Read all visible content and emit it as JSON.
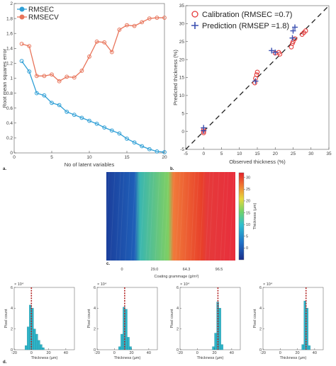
{
  "panels": {
    "a": "a.",
    "b": "b.",
    "c": "c.",
    "d": "d."
  },
  "colors": {
    "rmsec": "#2f9fd6",
    "rmsecv": "#e8745a",
    "calibration": "#e53c3c",
    "prediction": "#3a4fb0",
    "hist_bar": "#2fb5c9",
    "hist_line": "#b22222"
  },
  "chart_data": [
    {
      "id": "a",
      "type": "line",
      "xlabel": "No of latent variables",
      "ylabel": "Root mean squares error",
      "xlim": [
        0,
        20
      ],
      "ylim": [
        0,
        2
      ],
      "xticks": [
        0,
        5,
        10,
        15,
        20
      ],
      "yticks": [
        0,
        0.2,
        0.4,
        0.6,
        0.8,
        1,
        1.2,
        1.4,
        1.6,
        1.8,
        2
      ],
      "ytick_labels": [
        "0",
        "0.2",
        "0.4",
        "0.6",
        "0.8",
        "1",
        "1.2",
        "1.4",
        "1.6",
        "1.8",
        "2"
      ],
      "legend_position": "top-left",
      "x": [
        1,
        2,
        3,
        4,
        5,
        6,
        7,
        8,
        9,
        10,
        11,
        12,
        13,
        14,
        15,
        16,
        17,
        18,
        19,
        20
      ],
      "series": [
        {
          "name": "RMSEC",
          "values": [
            1.23,
            1.09,
            0.8,
            0.77,
            0.67,
            0.64,
            0.55,
            0.51,
            0.47,
            0.43,
            0.39,
            0.34,
            0.3,
            0.26,
            0.19,
            0.14,
            0.09,
            0.05,
            0.02,
            0.01
          ]
        },
        {
          "name": "RMSECV",
          "values": [
            1.46,
            1.43,
            1.03,
            1.03,
            1.05,
            0.96,
            1.02,
            1.01,
            1.1,
            1.29,
            1.49,
            1.48,
            1.35,
            1.65,
            1.71,
            1.7,
            1.75,
            1.8,
            1.81,
            1.81
          ]
        }
      ]
    },
    {
      "id": "b",
      "type": "scatter",
      "xlabel": "Observed thickness (%)",
      "ylabel": "Predicted thickness (%)",
      "xlim": [
        -5,
        35
      ],
      "ylim": [
        -5,
        35
      ],
      "xticks": [
        -5,
        0,
        5,
        10,
        15,
        20,
        25,
        30,
        35
      ],
      "yticks": [
        -5,
        0,
        5,
        10,
        15,
        20,
        25,
        30,
        35
      ],
      "legend_position": "top-left",
      "reference_line": "y = x (dashed)",
      "series": [
        {
          "name": "Calibration (RMSEC =0.7)",
          "marker": "circle",
          "points": [
            [
              0,
              0
            ],
            [
              0,
              0.5
            ],
            [
              0,
              -0.4
            ],
            [
              14.3,
              13.5
            ],
            [
              14.5,
              14.8
            ],
            [
              14.8,
              15.8
            ],
            [
              15,
              16.5
            ],
            [
              20,
              21.8
            ],
            [
              21,
              22
            ],
            [
              21.3,
              21.5
            ],
            [
              24.5,
              23.5
            ],
            [
              24.8,
              24.5
            ],
            [
              25,
              25
            ],
            [
              25.5,
              25.8
            ],
            [
              27.5,
              27
            ],
            [
              28,
              27.5
            ],
            [
              28.5,
              28
            ]
          ]
        },
        {
          "name": "Prediction (RMSEP =1.8)",
          "marker": "plus",
          "points": [
            [
              0,
              0.2
            ],
            [
              0,
              1
            ],
            [
              14.5,
              14
            ],
            [
              19,
              22.5
            ],
            [
              20,
              22
            ],
            [
              24.8,
              26
            ],
            [
              25,
              28
            ],
            [
              25.5,
              29
            ]
          ]
        }
      ]
    },
    {
      "id": "c",
      "type": "heatmap",
      "xlabel": "Coating grammage (g/m²)",
      "categories": [
        "0",
        "29.0",
        "64.3",
        "96.5"
      ],
      "colorbar_label": "Thickness (µm)",
      "colorbar_range": [
        -5,
        32
      ],
      "colorbar_ticks": [
        0,
        5,
        10,
        15,
        20,
        25,
        30
      ],
      "band_mean_thickness": [
        0,
        12,
        24,
        30
      ]
    },
    {
      "id": "d",
      "type": "bar",
      "title": "",
      "xlabel": "Thickness (µm)",
      "ylabel": "Pixel count",
      "y_multiplier": "× 10⁴",
      "xlim": [
        -20,
        50
      ],
      "xticks": [
        -20,
        0,
        20,
        40
      ],
      "ylim": [
        0,
        6
      ],
      "yticks": [
        0,
        2,
        4,
        6
      ],
      "bin_width": 2.5,
      "histograms": [
        {
          "centers": [
            -6.25,
            -3.75,
            -1.25,
            1.25,
            3.75,
            6.25,
            8.75,
            11.25,
            13.75
          ],
          "values": [
            0.4,
            2.2,
            4.3,
            4.0,
            2.0,
            1.5,
            0.9,
            0.5,
            0.2
          ],
          "mean_line": 0
        },
        {
          "centers": [
            6.25,
            8.75,
            11.25,
            13.75,
            16.25,
            18.75
          ],
          "values": [
            0.3,
            1.5,
            4.1,
            3.9,
            1.2,
            0.3
          ],
          "mean_line": 12
        },
        {
          "centers": [
            18.75,
            21.25,
            23.75,
            26.25,
            28.75
          ],
          "values": [
            0.3,
            1.6,
            4.6,
            4.0,
            0.5
          ],
          "mean_line": 24
        },
        {
          "centers": [
            26.25,
            28.75,
            31.25,
            33.75
          ],
          "values": [
            0.5,
            4.7,
            4.0,
            0.4
          ],
          "mean_line": 30
        }
      ]
    }
  ]
}
